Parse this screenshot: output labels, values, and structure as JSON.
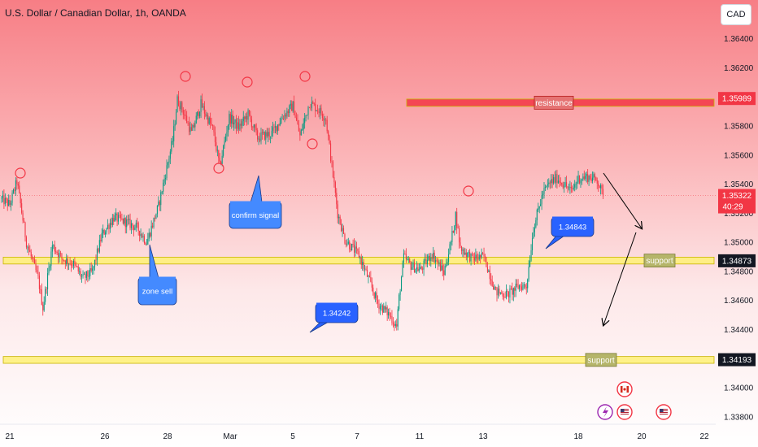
{
  "header": {
    "title": "U.S. Dollar / Canadian Dollar, 1h, OANDA",
    "currency": "CAD"
  },
  "colors": {
    "up": "#089981",
    "down": "#f23645",
    "zone_fill": "#fff176",
    "resistance_fill": "#f23645",
    "callout_blue": "#2962ff",
    "price_tag_dark": "#131722"
  },
  "chart_data": {
    "type": "candlestick",
    "x_ticks": [
      "21",
      "26",
      "28",
      "Mar",
      "5",
      "7",
      "11",
      "13",
      "18",
      "20",
      "22"
    ],
    "y_ticks": [
      1.338,
      1.34,
      1.342,
      1.344,
      1.346,
      1.348,
      1.35,
      1.352,
      1.354,
      1.356,
      1.358,
      1.36,
      1.362,
      1.364
    ],
    "ylim": [
      1.3371,
      1.3656
    ],
    "price_anchors": [
      [
        0,
        1.353
      ],
      [
        8,
        1.3526
      ],
      [
        14,
        1.3542
      ],
      [
        22,
        1.35
      ],
      [
        32,
        1.3475
      ],
      [
        36,
        1.3455
      ],
      [
        44,
        1.3498
      ],
      [
        52,
        1.3489
      ],
      [
        62,
        1.3485
      ],
      [
        70,
        1.3475
      ],
      [
        78,
        1.348
      ],
      [
        86,
        1.3505
      ],
      [
        96,
        1.3517
      ],
      [
        106,
        1.3514
      ],
      [
        116,
        1.351
      ],
      [
        124,
        1.35
      ],
      [
        134,
        1.3525
      ],
      [
        146,
        1.357
      ],
      [
        150,
        1.3598
      ],
      [
        154,
        1.3592
      ],
      [
        162,
        1.3575
      ],
      [
        170,
        1.3595
      ],
      [
        180,
        1.3578
      ],
      [
        186,
        1.3552
      ],
      [
        194,
        1.3586
      ],
      [
        202,
        1.3579
      ],
      [
        210,
        1.3588
      ],
      [
        218,
        1.3572
      ],
      [
        230,
        1.3575
      ],
      [
        240,
        1.3587
      ],
      [
        248,
        1.3594
      ],
      [
        254,
        1.3573
      ],
      [
        262,
        1.3596
      ],
      [
        270,
        1.3591
      ],
      [
        276,
        1.3585
      ],
      [
        286,
        1.352
      ],
      [
        292,
        1.3502
      ],
      [
        304,
        1.3491
      ],
      [
        312,
        1.3475
      ],
      [
        320,
        1.3458
      ],
      [
        330,
        1.345
      ],
      [
        336,
        1.3442
      ],
      [
        338,
        1.3462
      ],
      [
        342,
        1.349
      ],
      [
        348,
        1.3484
      ],
      [
        356,
        1.3481
      ],
      [
        366,
        1.3492
      ],
      [
        376,
        1.3479
      ],
      [
        382,
        1.35
      ],
      [
        386,
        1.3519
      ],
      [
        390,
        1.3496
      ],
      [
        400,
        1.3489
      ],
      [
        410,
        1.349
      ],
      [
        420,
        1.3466
      ],
      [
        430,
        1.3464
      ],
      [
        440,
        1.347
      ],
      [
        446,
        1.347
      ],
      [
        452,
        1.351
      ],
      [
        460,
        1.3534
      ],
      [
        466,
        1.3541
      ],
      [
        472,
        1.3544
      ],
      [
        478,
        1.354
      ],
      [
        484,
        1.3535
      ],
      [
        490,
        1.3544
      ],
      [
        498,
        1.3545
      ],
      [
        506,
        1.3543
      ],
      [
        510,
        1.3534
      ]
    ],
    "pivot_marks": [
      [
        25,
        213
      ],
      [
        228,
        94
      ],
      [
        304,
        101
      ],
      [
        375,
        94
      ],
      [
        269,
        207
      ],
      [
        384,
        177
      ],
      [
        576,
        235
      ]
    ],
    "annotations": {
      "resistance": {
        "label": "resistance",
        "price": "1.35989",
        "low": 1.35935,
        "high": 1.35985
      },
      "support_upper": {
        "label": "support",
        "price": "1.34873",
        "low": 1.34851,
        "high": 1.34898
      },
      "support_lower": {
        "label": "support",
        "price": "1.34193",
        "low": 1.34168,
        "high": 1.34215
      },
      "callouts": {
        "zone_sell": "zone sell",
        "confirm_signal": "confirm signal",
        "level_1": "1.34843",
        "level_2": "1.34242"
      },
      "current_price": "1.35322",
      "countdown": "40:29"
    },
    "event_icons": [
      "canada-flag-icon",
      "lightning-icon",
      "us-flag-icon",
      "us-flag-icon"
    ]
  }
}
